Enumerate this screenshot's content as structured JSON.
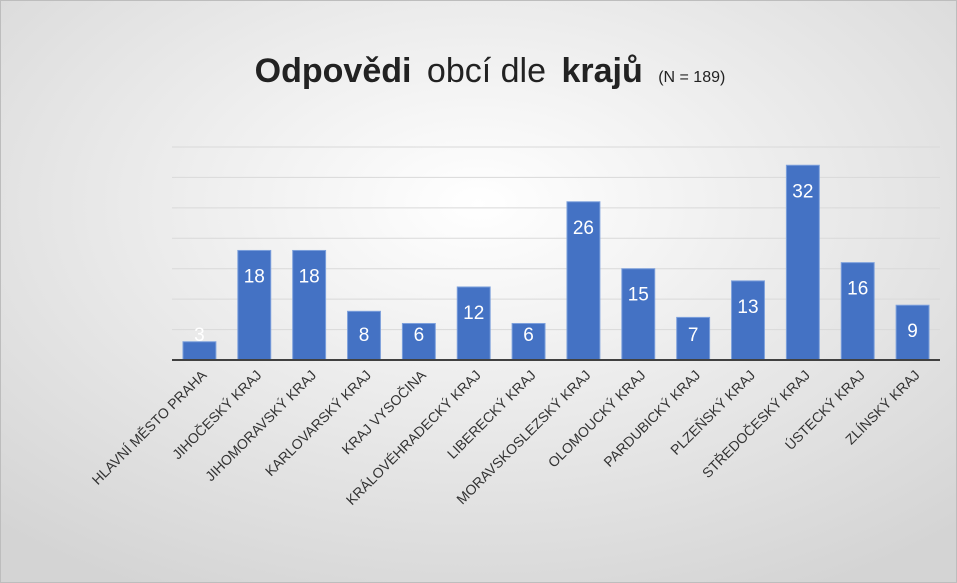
{
  "chart_data": {
    "type": "bar",
    "title": {
      "parts": [
        "Odpovědi",
        "obcí dle",
        "krajů"
      ],
      "note": "(N = 189)"
    },
    "categories": [
      "HLAVNÍ MĚSTO PRAHA",
      "JIHOČESKÝ KRAJ",
      "JIHOMORAVSKÝ KRAJ",
      "KARLOVARSKÝ KRAJ",
      "KRAJ VYSOČINA",
      "KRÁLOVÉHRADECKÝ KRAJ",
      "LIBERECKÝ KRAJ",
      "MORAVSKOSLEZSKÝ KRAJ",
      "OLOMOUCKÝ KRAJ",
      "PARDUBICKÝ KRAJ",
      "PLZEŇSKÝ KRAJ",
      "STŘEDOČESKÝ KRAJ",
      "ÚSTECKÝ KRAJ",
      "ZLÍNSKÝ KRAJ"
    ],
    "values": [
      3,
      18,
      18,
      8,
      6,
      12,
      6,
      26,
      15,
      7,
      13,
      32,
      16,
      9
    ],
    "color": "#4472c4",
    "ylim": [
      0,
      35
    ],
    "yticks": [
      0,
      5,
      10,
      15,
      20,
      25,
      30,
      35
    ],
    "grid": true
  }
}
